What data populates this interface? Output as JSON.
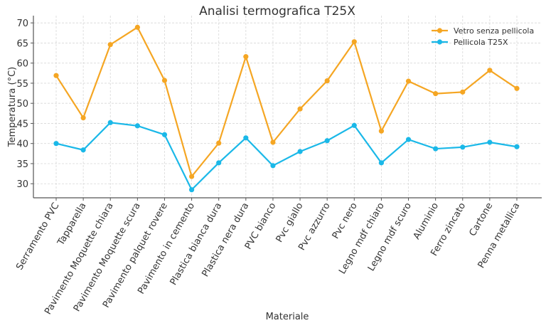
{
  "chart_data": {
    "type": "line",
    "title": "Analisi termografica T25X",
    "xlabel": "Materiale",
    "ylabel": "Temperatura (°C)",
    "categories": [
      "Serramento PVC",
      "Tapparella",
      "Pavimento Moquette chiara",
      "Pavimento Moquette scura",
      "Pavimento palquet rovere",
      "Pavimento in cemento",
      "Plastica bianca dura",
      "Plastica nera dura",
      "PVC bianco",
      "Pvc giallo",
      "Pvc azzurro",
      "Pvc nero",
      "Legno mdf chiaro",
      "Legno mdf scuro",
      "Aluminio",
      "Ferro zincato",
      "Cartone",
      "Penna metallica"
    ],
    "series": [
      {
        "name": "Vetro senza pellicola",
        "color": "#f5a623",
        "values": [
          56.9,
          46.4,
          64.6,
          68.9,
          55.7,
          31.8,
          40.1,
          61.6,
          40.3,
          48.6,
          55.6,
          65.3,
          43.1,
          55.5,
          52.4,
          52.8,
          58.2,
          53.7
        ]
      },
      {
        "name": "Pellicola T25X",
        "color": "#1ab8e8",
        "values": [
          40.0,
          38.4,
          45.2,
          44.4,
          42.2,
          28.5,
          35.2,
          41.4,
          34.5,
          38.0,
          40.7,
          44.5,
          35.2,
          41.0,
          38.7,
          39.1,
          40.3,
          39.2
        ]
      }
    ],
    "yticks": [
      30,
      35,
      40,
      45,
      50,
      55,
      60,
      65,
      70
    ],
    "ylim": [
      26.5,
      71.8
    ],
    "grid": true,
    "legend": "top-right"
  }
}
